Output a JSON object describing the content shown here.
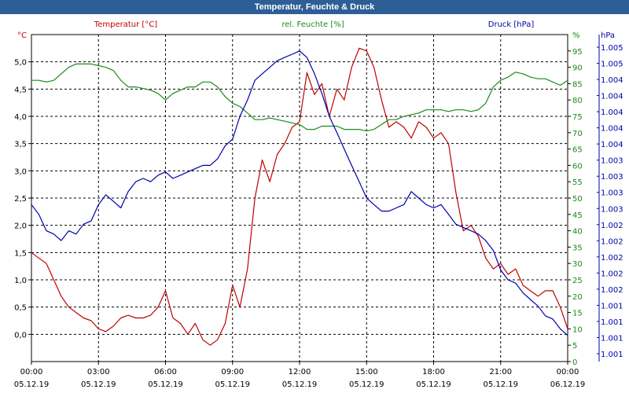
{
  "title": "Temperatur, Feuchte & Druck",
  "colors": {
    "temperature": "#c00000",
    "humidity": "#1a8a1a",
    "pressure": "#0000aa",
    "grid": "#000000",
    "axis_text": "#000000",
    "title_bg": "#2e5e96"
  },
  "chart_data": {
    "type": "line",
    "grid": true,
    "legend_placement": "top",
    "x_ticks": [
      {
        "time": "00:00",
        "date": "05.12.19"
      },
      {
        "time": "03:00",
        "date": "05.12.19"
      },
      {
        "time": "06:00",
        "date": "05.12.19"
      },
      {
        "time": "09:00",
        "date": "05.12.19"
      },
      {
        "time": "12:00",
        "date": "05.12.19"
      },
      {
        "time": "15:00",
        "date": "05.12.19"
      },
      {
        "time": "18:00",
        "date": "05.12.19"
      },
      {
        "time": "21:00",
        "date": "05.12.19"
      },
      {
        "time": "00:00",
        "date": "06.12.19"
      }
    ],
    "x_hours": [
      0,
      0.33,
      0.67,
      1,
      1.33,
      1.67,
      2,
      2.33,
      2.67,
      3,
      3.33,
      3.67,
      4,
      4.33,
      4.67,
      5,
      5.33,
      5.67,
      6,
      6.33,
      6.67,
      7,
      7.33,
      7.67,
      8,
      8.33,
      8.67,
      9,
      9.33,
      9.67,
      10,
      10.33,
      10.67,
      11,
      11.33,
      11.67,
      12,
      12.33,
      12.67,
      13,
      13.33,
      13.67,
      14,
      14.33,
      14.67,
      15,
      15.33,
      15.67,
      16,
      16.33,
      16.67,
      17,
      17.33,
      17.67,
      18,
      18.33,
      18.67,
      19,
      19.33,
      19.67,
      20,
      20.33,
      20.67,
      21,
      21.33,
      21.67,
      22,
      22.33,
      22.67,
      23,
      23.33,
      23.67,
      24
    ],
    "axes": {
      "left": {
        "unit": "°C",
        "ylim": [
          -0.5,
          5.5
        ],
        "ticks": [
          "0,0",
          "0,5",
          "1,0",
          "1,5",
          "2,0",
          "2,5",
          "3,0",
          "3,5",
          "4,0",
          "4,5",
          "5,0"
        ],
        "tick_values": [
          0,
          0.5,
          1,
          1.5,
          2,
          2.5,
          3,
          3.5,
          4,
          4.5,
          5
        ]
      },
      "right1": {
        "unit": "%",
        "ylim": [
          0,
          100
        ],
        "ticks": [
          "0",
          "5",
          "10",
          "15",
          "20",
          "25",
          "30",
          "35",
          "40",
          "45",
          "50",
          "55",
          "60",
          "65",
          "70",
          "75",
          "80",
          "85",
          "90",
          "95"
        ],
        "tick_values": [
          0,
          5,
          10,
          15,
          20,
          25,
          30,
          35,
          40,
          45,
          50,
          55,
          60,
          65,
          70,
          75,
          80,
          85,
          90,
          95
        ]
      },
      "right2": {
        "unit": "hPa",
        "ticks": [
          "1.001",
          "1.001",
          "1.001",
          "1.001",
          "1.002",
          "1.002",
          "1.002",
          "1.002",
          "1.002",
          "1.003",
          "1.003",
          "1.003",
          "1.003",
          "1.004",
          "1.004",
          "1.004",
          "1.004",
          "1.004",
          "1.005",
          "1.005"
        ]
      }
    },
    "series": [
      {
        "name": "Temperatur [°C]",
        "axis": "left",
        "values": [
          1.5,
          1.4,
          1.3,
          1.0,
          0.7,
          0.5,
          0.4,
          0.3,
          0.25,
          0.1,
          0.05,
          0.15,
          0.3,
          0.35,
          0.3,
          0.3,
          0.35,
          0.5,
          0.8,
          0.3,
          0.2,
          0.0,
          0.2,
          -0.1,
          -0.2,
          -0.1,
          0.2,
          0.9,
          0.5,
          1.2,
          2.5,
          3.2,
          2.8,
          3.3,
          3.5,
          3.8,
          3.9,
          4.8,
          4.4,
          4.6,
          4.0,
          4.5,
          4.3,
          4.9,
          5.25,
          5.2,
          4.9,
          4.3,
          3.8,
          3.9,
          3.8,
          3.6,
          3.9,
          3.8,
          3.6,
          3.7,
          3.5,
          2.6,
          1.9,
          2.0,
          1.8,
          1.4,
          1.2,
          1.3,
          1.1,
          1.2,
          0.9,
          0.8,
          0.7,
          0.8,
          0.8,
          0.5,
          0.1
        ]
      },
      {
        "name": "rel. Feuchte [%]",
        "axis": "right1",
        "values": [
          86,
          86,
          85.5,
          86,
          88,
          90,
          91,
          91,
          91,
          90.5,
          90,
          89,
          86,
          84,
          84,
          83.5,
          83,
          82,
          80,
          82,
          83,
          84,
          84,
          85.5,
          85.5,
          84,
          81,
          79,
          78,
          76,
          74,
          74,
          74.5,
          74,
          73.5,
          73,
          72.5,
          71,
          71,
          72,
          72,
          72,
          71,
          71,
          71,
          70.5,
          71,
          72.5,
          74,
          74,
          75,
          75.5,
          76,
          77,
          77,
          77,
          76.5,
          77,
          77,
          76.5,
          77,
          79,
          84,
          86,
          87,
          88.5,
          88,
          87,
          86.5,
          86.5,
          85.5,
          84.5,
          86
        ]
      },
      {
        "name": "Druck [hPa]",
        "axis": "right2",
        "values": [
          48,
          45,
          40,
          39,
          37,
          40,
          39,
          42,
          43,
          48,
          51,
          49,
          47,
          52,
          55,
          56,
          55,
          57,
          58,
          56,
          57,
          58,
          59,
          60,
          60,
          62,
          66,
          68,
          75,
          80,
          86,
          88,
          90,
          92,
          93,
          94,
          95,
          93,
          88,
          82,
          75,
          70,
          65,
          60,
          55,
          50,
          48,
          46,
          46,
          47,
          48,
          52,
          50,
          48,
          47,
          48,
          45,
          42,
          41,
          40,
          39,
          37,
          34,
          28,
          25,
          24,
          21,
          19,
          17,
          14,
          13,
          10,
          8
        ]
      }
    ]
  }
}
